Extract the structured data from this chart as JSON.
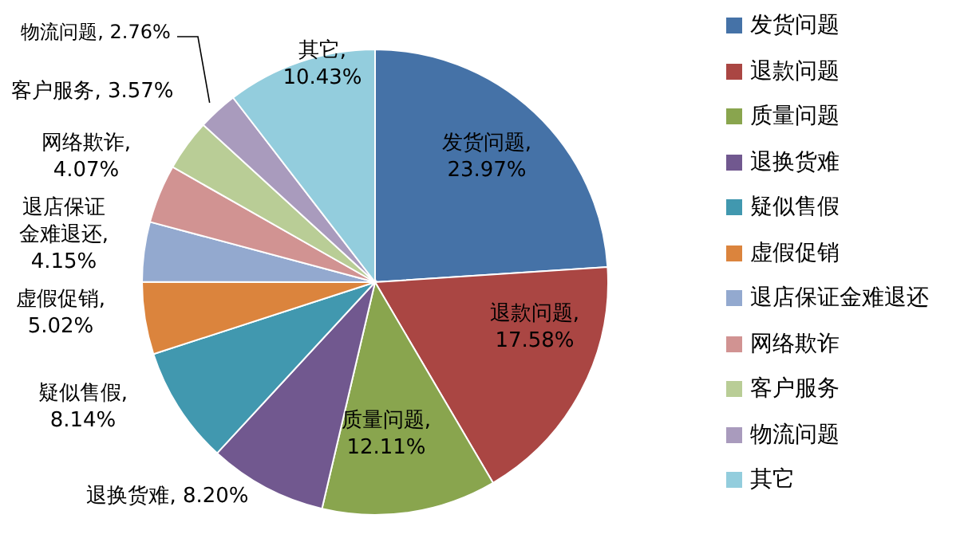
{
  "chart_data": {
    "type": "pie",
    "categories": [
      "发货问题",
      "退款问题",
      "质量问题",
      "退换货难",
      "疑似售假",
      "虚假促销",
      "退店保证金难退还",
      "网络欺诈",
      "客户服务",
      "物流问题",
      "其它"
    ],
    "values": [
      23.97,
      17.58,
      12.11,
      8.2,
      8.14,
      5.02,
      4.15,
      4.07,
      3.57,
      2.76,
      10.43
    ],
    "value_labels": [
      "发货问题, 23.97%",
      "退款问题, 17.58%",
      "质量问题, 12.11%",
      "退换货难, 8.20%",
      "疑似售假, 8.14%",
      "虚假促销, 5.02%",
      "退店保证金难退还, 4.15%",
      "网络欺诈, 4.07%",
      "客户服务, 3.57%",
      "物流问题, 2.76%",
      "其它, 10.43%"
    ],
    "colors": [
      "#4572a7",
      "#aa4643",
      "#89a54e",
      "#71588f",
      "#4198af",
      "#db843d",
      "#93a9cf",
      "#d19392",
      "#b9cd96",
      "#a99bbd",
      "#93cddd"
    ],
    "legend": "right"
  }
}
